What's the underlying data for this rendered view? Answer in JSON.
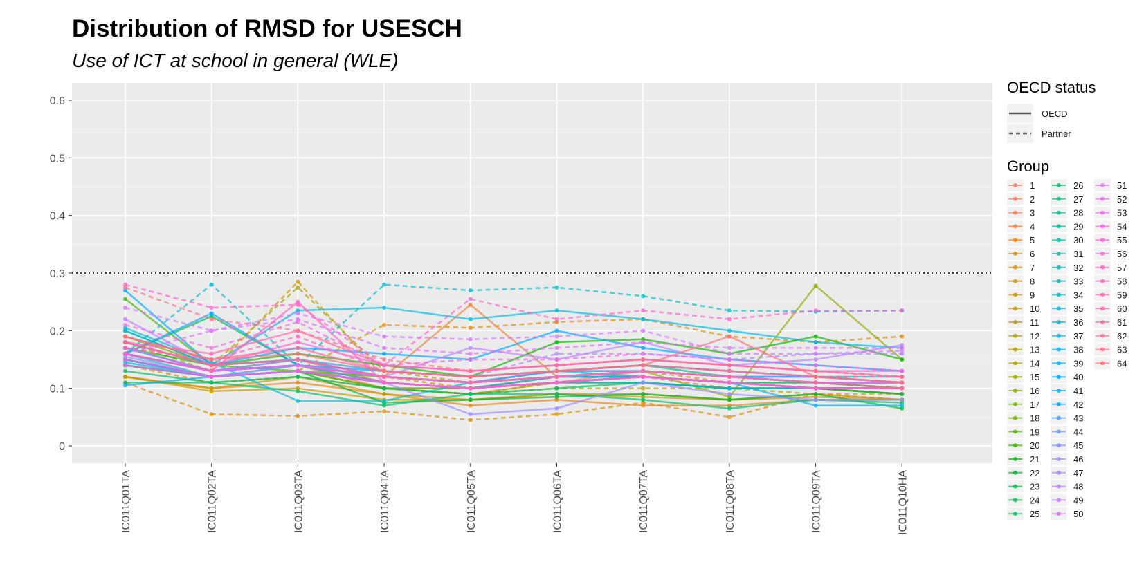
{
  "chart_data": {
    "type": "line",
    "title": "Distribution of RMSD for USESCH",
    "subtitle": "Use of ICT at school in general (WLE)",
    "xlabel": "",
    "ylabel": "",
    "categories": [
      "IC011Q01TA",
      "IC011Q02TA",
      "IC011Q03TA",
      "IC011Q04TA",
      "IC011Q05TA",
      "IC011Q06TA",
      "IC011Q07TA",
      "IC011Q08TA",
      "IC011Q09TA",
      "IC011Q10HA"
    ],
    "ylim": [
      -0.03,
      0.63
    ],
    "yticks": [
      0,
      0.1,
      0.2,
      0.3,
      0.4,
      0.5,
      0.6
    ],
    "ytick_labels": [
      "0",
      "0.1",
      "0.2",
      "0.3",
      "0.4",
      "0.5",
      "0.6"
    ],
    "reference_line": {
      "y": 0.3,
      "style": "dotted"
    },
    "grid": true,
    "panel_background": "#EBEBEB",
    "legend_position": "right",
    "linetype_legend": {
      "title": "OECD status",
      "entries": [
        {
          "label": "OECD",
          "linetype": "solid"
        },
        {
          "label": "Partner",
          "linetype": "dashed"
        }
      ]
    },
    "color_legend_title": "Group",
    "series": [
      {
        "name": "1",
        "oecd": true,
        "values": [
          0.18,
          0.14,
          0.15,
          0.11,
          0.1,
          0.11,
          0.13,
          0.12,
          0.11,
          0.1
        ]
      },
      {
        "name": "2",
        "oecd": true,
        "values": [
          0.17,
          0.13,
          0.14,
          0.1,
          0.1,
          0.12,
          0.12,
          0.11,
          0.1,
          0.09
        ]
      },
      {
        "name": "3",
        "oecd": false,
        "values": [
          0.15,
          0.12,
          0.13,
          0.1,
          0.09,
          0.11,
          0.12,
          0.1,
          0.1,
          0.09
        ]
      },
      {
        "name": "4",
        "oecd": true,
        "values": [
          0.16,
          0.13,
          0.14,
          0.12,
          0.245,
          0.12,
          0.13,
          0.12,
          0.11,
          0.1
        ]
      },
      {
        "name": "5",
        "oecd": true,
        "values": [
          0.12,
          0.1,
          0.11,
          0.09,
          0.07,
          0.08,
          0.07,
          0.07,
          0.08,
          0.08
        ]
      },
      {
        "name": "6",
        "oecd": false,
        "values": [
          0.14,
          0.12,
          0.13,
          0.21,
          0.205,
          0.215,
          0.22,
          0.19,
          0.18,
          0.19
        ]
      },
      {
        "name": "7",
        "oecd": false,
        "values": [
          0.11,
          0.055,
          0.052,
          0.06,
          0.045,
          0.055,
          0.075,
          0.05,
          0.09,
          0.08
        ]
      },
      {
        "name": "8",
        "oecd": false,
        "values": [
          0.18,
          0.13,
          0.285,
          0.12,
          0.1,
          0.12,
          0.13,
          0.11,
          0.1,
          0.09
        ]
      },
      {
        "name": "9",
        "oecd": true,
        "values": [
          0.12,
          0.1,
          0.12,
          0.09,
          0.08,
          0.09,
          0.09,
          0.08,
          0.09,
          0.08
        ]
      },
      {
        "name": "10",
        "oecd": true,
        "values": [
          0.12,
          0.095,
          0.1,
          0.08,
          0.08,
          0.09,
          0.085,
          0.08,
          0.085,
          0.08
        ]
      },
      {
        "name": "11",
        "oecd": false,
        "values": [
          0.14,
          0.11,
          0.12,
          0.1,
          0.09,
          0.1,
          0.1,
          0.1,
          0.09,
          0.09
        ]
      },
      {
        "name": "12",
        "oecd": true,
        "values": [
          0.16,
          0.13,
          0.14,
          0.11,
          0.1,
          0.11,
          0.12,
          0.11,
          0.1,
          0.1
        ]
      },
      {
        "name": "13",
        "oecd": true,
        "values": [
          0.15,
          0.12,
          0.13,
          0.1,
          0.09,
          0.11,
          0.11,
          0.1,
          0.1,
          0.09
        ]
      },
      {
        "name": "14",
        "oecd": false,
        "values": [
          0.18,
          0.14,
          0.275,
          0.13,
          0.11,
          0.13,
          0.14,
          0.13,
          0.12,
          0.11
        ]
      },
      {
        "name": "15",
        "oecd": true,
        "values": [
          0.17,
          0.13,
          0.15,
          0.12,
          0.11,
          0.12,
          0.13,
          0.085,
          0.278,
          0.15
        ]
      },
      {
        "name": "16",
        "oecd": true,
        "values": [
          0.15,
          0.12,
          0.13,
          0.11,
          0.1,
          0.11,
          0.12,
          0.11,
          0.1,
          0.1
        ]
      },
      {
        "name": "17",
        "oecd": true,
        "values": [
          0.19,
          0.14,
          0.15,
          0.12,
          0.11,
          0.12,
          0.13,
          0.12,
          0.11,
          0.11
        ]
      },
      {
        "name": "18",
        "oecd": true,
        "values": [
          0.16,
          0.13,
          0.14,
          0.11,
          0.1,
          0.12,
          0.12,
          0.11,
          0.11,
          0.1
        ]
      },
      {
        "name": "19",
        "oecd": true,
        "values": [
          0.14,
          0.12,
          0.13,
          0.1,
          0.1,
          0.11,
          0.11,
          0.1,
          0.1,
          0.09
        ]
      },
      {
        "name": "20",
        "oecd": true,
        "values": [
          0.255,
          0.14,
          0.13,
          0.12,
          0.11,
          0.12,
          0.13,
          0.12,
          0.11,
          0.11
        ]
      },
      {
        "name": "21",
        "oecd": true,
        "values": [
          0.17,
          0.14,
          0.16,
          0.14,
          0.12,
          0.18,
          0.185,
          0.16,
          0.19,
          0.15
        ]
      },
      {
        "name": "22",
        "oecd": true,
        "values": [
          0.15,
          0.12,
          0.13,
          0.075,
          0.08,
          0.085,
          0.09,
          0.08,
          0.09,
          0.065
        ]
      },
      {
        "name": "23",
        "oecd": true,
        "values": [
          0.16,
          0.225,
          0.14,
          0.11,
          0.1,
          0.11,
          0.12,
          0.11,
          0.1,
          0.1
        ]
      },
      {
        "name": "24",
        "oecd": true,
        "values": [
          0.13,
          0.11,
          0.12,
          0.1,
          0.09,
          0.1,
          0.11,
          0.1,
          0.1,
          0.09
        ]
      },
      {
        "name": "25",
        "oecd": true,
        "values": [
          0.11,
          0.11,
          0.095,
          0.07,
          0.09,
          0.09,
          0.08,
          0.065,
          0.08,
          0.075
        ]
      },
      {
        "name": "26",
        "oecd": true,
        "values": [
          0.2,
          0.14,
          0.15,
          0.12,
          0.11,
          0.13,
          0.14,
          0.12,
          0.12,
          0.11
        ]
      },
      {
        "name": "27",
        "oecd": true,
        "values": [
          0.16,
          0.13,
          0.14,
          0.12,
          0.11,
          0.12,
          0.12,
          0.11,
          0.11,
          0.1
        ]
      },
      {
        "name": "28",
        "oecd": true,
        "values": [
          0.14,
          0.12,
          0.13,
          0.11,
          0.1,
          0.11,
          0.12,
          0.11,
          0.1,
          0.1
        ]
      },
      {
        "name": "29",
        "oecd": true,
        "values": [
          0.17,
          0.13,
          0.14,
          0.12,
          0.11,
          0.12,
          0.13,
          0.12,
          0.11,
          0.11
        ]
      },
      {
        "name": "30",
        "oecd": false,
        "values": [
          0.15,
          0.12,
          0.13,
          0.11,
          0.1,
          0.11,
          0.12,
          0.11,
          0.1,
          0.1
        ]
      },
      {
        "name": "31",
        "oecd": true,
        "values": [
          0.18,
          0.14,
          0.15,
          0.13,
          0.12,
          0.13,
          0.14,
          0.13,
          0.12,
          0.12
        ]
      },
      {
        "name": "32",
        "oecd": true,
        "values": [
          0.16,
          0.12,
          0.14,
          0.12,
          0.11,
          0.12,
          0.13,
          0.12,
          0.11,
          0.11
        ]
      },
      {
        "name": "33",
        "oecd": true,
        "values": [
          0.15,
          0.12,
          0.13,
          0.11,
          0.1,
          0.12,
          0.12,
          0.11,
          0.1,
          0.1
        ]
      },
      {
        "name": "34",
        "oecd": false,
        "values": [
          0.16,
          0.28,
          0.14,
          0.28,
          0.27,
          0.275,
          0.26,
          0.235,
          0.233,
          0.235
        ]
      },
      {
        "name": "35",
        "oecd": true,
        "values": [
          0.205,
          0.145,
          0.078,
          0.078,
          0.11,
          0.13,
          0.12,
          0.11,
          0.1,
          0.1
        ]
      },
      {
        "name": "36",
        "oecd": true,
        "values": [
          0.2,
          0.14,
          0.235,
          0.24,
          0.22,
          0.235,
          0.22,
          0.2,
          0.18,
          0.17
        ]
      },
      {
        "name": "37",
        "oecd": true,
        "values": [
          0.16,
          0.13,
          0.14,
          0.12,
          0.11,
          0.12,
          0.13,
          0.12,
          0.11,
          0.11
        ]
      },
      {
        "name": "38",
        "oecd": true,
        "values": [
          0.15,
          0.12,
          0.13,
          0.11,
          0.1,
          0.11,
          0.11,
          0.1,
          0.1,
          0.1
        ]
      },
      {
        "name": "39",
        "oecd": true,
        "values": [
          0.145,
          0.12,
          0.13,
          0.11,
          0.1,
          0.11,
          0.12,
          0.11,
          0.07,
          0.07
        ]
      },
      {
        "name": "40",
        "oecd": true,
        "values": [
          0.105,
          0.12,
          0.13,
          0.11,
          0.1,
          0.11,
          0.12,
          0.11,
          0.1,
          0.1
        ]
      },
      {
        "name": "41",
        "oecd": true,
        "values": [
          0.27,
          0.14,
          0.17,
          0.16,
          0.15,
          0.2,
          0.17,
          0.15,
          0.14,
          0.13
        ]
      },
      {
        "name": "42",
        "oecd": true,
        "values": [
          0.16,
          0.23,
          0.14,
          0.13,
          0.12,
          0.13,
          0.13,
          0.12,
          0.12,
          0.11
        ]
      },
      {
        "name": "43",
        "oecd": false,
        "values": [
          0.15,
          0.12,
          0.13,
          0.11,
          0.1,
          0.12,
          0.12,
          0.11,
          0.1,
          0.1
        ]
      },
      {
        "name": "44",
        "oecd": true,
        "values": [
          0.17,
          0.13,
          0.14,
          0.12,
          0.11,
          0.12,
          0.13,
          0.12,
          0.11,
          0.11
        ]
      },
      {
        "name": "45",
        "oecd": true,
        "values": [
          0.16,
          0.13,
          0.15,
          0.12,
          0.11,
          0.13,
          0.13,
          0.12,
          0.12,
          0.11
        ]
      },
      {
        "name": "46",
        "oecd": true,
        "values": [
          0.155,
          0.12,
          0.14,
          0.11,
          0.055,
          0.065,
          0.11,
          0.09,
          0.08,
          0.08
        ]
      },
      {
        "name": "47",
        "oecd": false,
        "values": [
          0.16,
          0.13,
          0.15,
          0.13,
          0.12,
          0.16,
          0.16,
          0.15,
          0.16,
          0.16
        ]
      },
      {
        "name": "48",
        "oecd": true,
        "values": [
          0.22,
          0.14,
          0.15,
          0.12,
          0.17,
          0.15,
          0.18,
          0.14,
          0.15,
          0.175
        ]
      },
      {
        "name": "49",
        "oecd": true,
        "values": [
          0.17,
          0.13,
          0.14,
          0.12,
          0.11,
          0.12,
          0.13,
          0.12,
          0.11,
          0.11
        ]
      },
      {
        "name": "50",
        "oecd": false,
        "values": [
          0.24,
          0.2,
          0.23,
          0.19,
          0.185,
          0.19,
          0.2,
          0.16,
          0.16,
          0.165
        ]
      },
      {
        "name": "51",
        "oecd": false,
        "values": [
          0.16,
          0.2,
          0.22,
          0.17,
          0.16,
          0.17,
          0.18,
          0.17,
          0.17,
          0.17
        ]
      },
      {
        "name": "52",
        "oecd": true,
        "values": [
          0.14,
          0.12,
          0.13,
          0.11,
          0.1,
          0.11,
          0.12,
          0.11,
          0.1,
          0.1
        ]
      },
      {
        "name": "53",
        "oecd": true,
        "values": [
          0.16,
          0.13,
          0.14,
          0.12,
          0.11,
          0.12,
          0.13,
          0.12,
          0.11,
          0.11
        ]
      },
      {
        "name": "54",
        "oecd": false,
        "values": [
          0.21,
          0.17,
          0.215,
          0.14,
          0.15,
          0.15,
          0.16,
          0.15,
          0.14,
          0.13
        ]
      },
      {
        "name": "55",
        "oecd": true,
        "values": [
          0.15,
          0.12,
          0.13,
          0.11,
          0.1,
          0.11,
          0.12,
          0.11,
          0.1,
          0.1
        ]
      },
      {
        "name": "56",
        "oecd": true,
        "values": [
          0.18,
          0.14,
          0.18,
          0.14,
          0.13,
          0.14,
          0.15,
          0.14,
          0.13,
          0.13
        ]
      },
      {
        "name": "57",
        "oecd": false,
        "values": [
          0.28,
          0.24,
          0.245,
          0.14,
          0.255,
          0.22,
          0.235,
          0.22,
          0.235,
          0.235
        ]
      },
      {
        "name": "58",
        "oecd": true,
        "values": [
          0.16,
          0.13,
          0.25,
          0.11,
          0.1,
          0.11,
          0.12,
          0.11,
          0.1,
          0.1
        ]
      },
      {
        "name": "59",
        "oecd": false,
        "values": [
          0.17,
          0.15,
          0.19,
          0.13,
          0.12,
          0.13,
          0.14,
          0.13,
          0.12,
          0.12
        ]
      },
      {
        "name": "60",
        "oecd": true,
        "values": [
          0.18,
          0.16,
          0.2,
          0.14,
          0.13,
          0.14,
          0.15,
          0.14,
          0.13,
          0.12
        ]
      },
      {
        "name": "61",
        "oecd": true,
        "values": [
          0.19,
          0.15,
          0.17,
          0.13,
          0.12,
          0.13,
          0.14,
          0.13,
          0.12,
          0.11
        ]
      },
      {
        "name": "62",
        "oecd": true,
        "values": [
          0.18,
          0.14,
          0.15,
          0.12,
          0.11,
          0.12,
          0.13,
          0.12,
          0.11,
          0.1
        ]
      },
      {
        "name": "63",
        "oecd": false,
        "values": [
          0.275,
          0.22,
          0.2,
          0.15,
          0.13,
          0.14,
          0.15,
          0.14,
          0.13,
          0.12
        ]
      },
      {
        "name": "64",
        "oecd": true,
        "values": [
          0.19,
          0.15,
          0.16,
          0.13,
          0.12,
          0.13,
          0.14,
          0.19,
          0.12,
          0.11
        ]
      }
    ]
  }
}
